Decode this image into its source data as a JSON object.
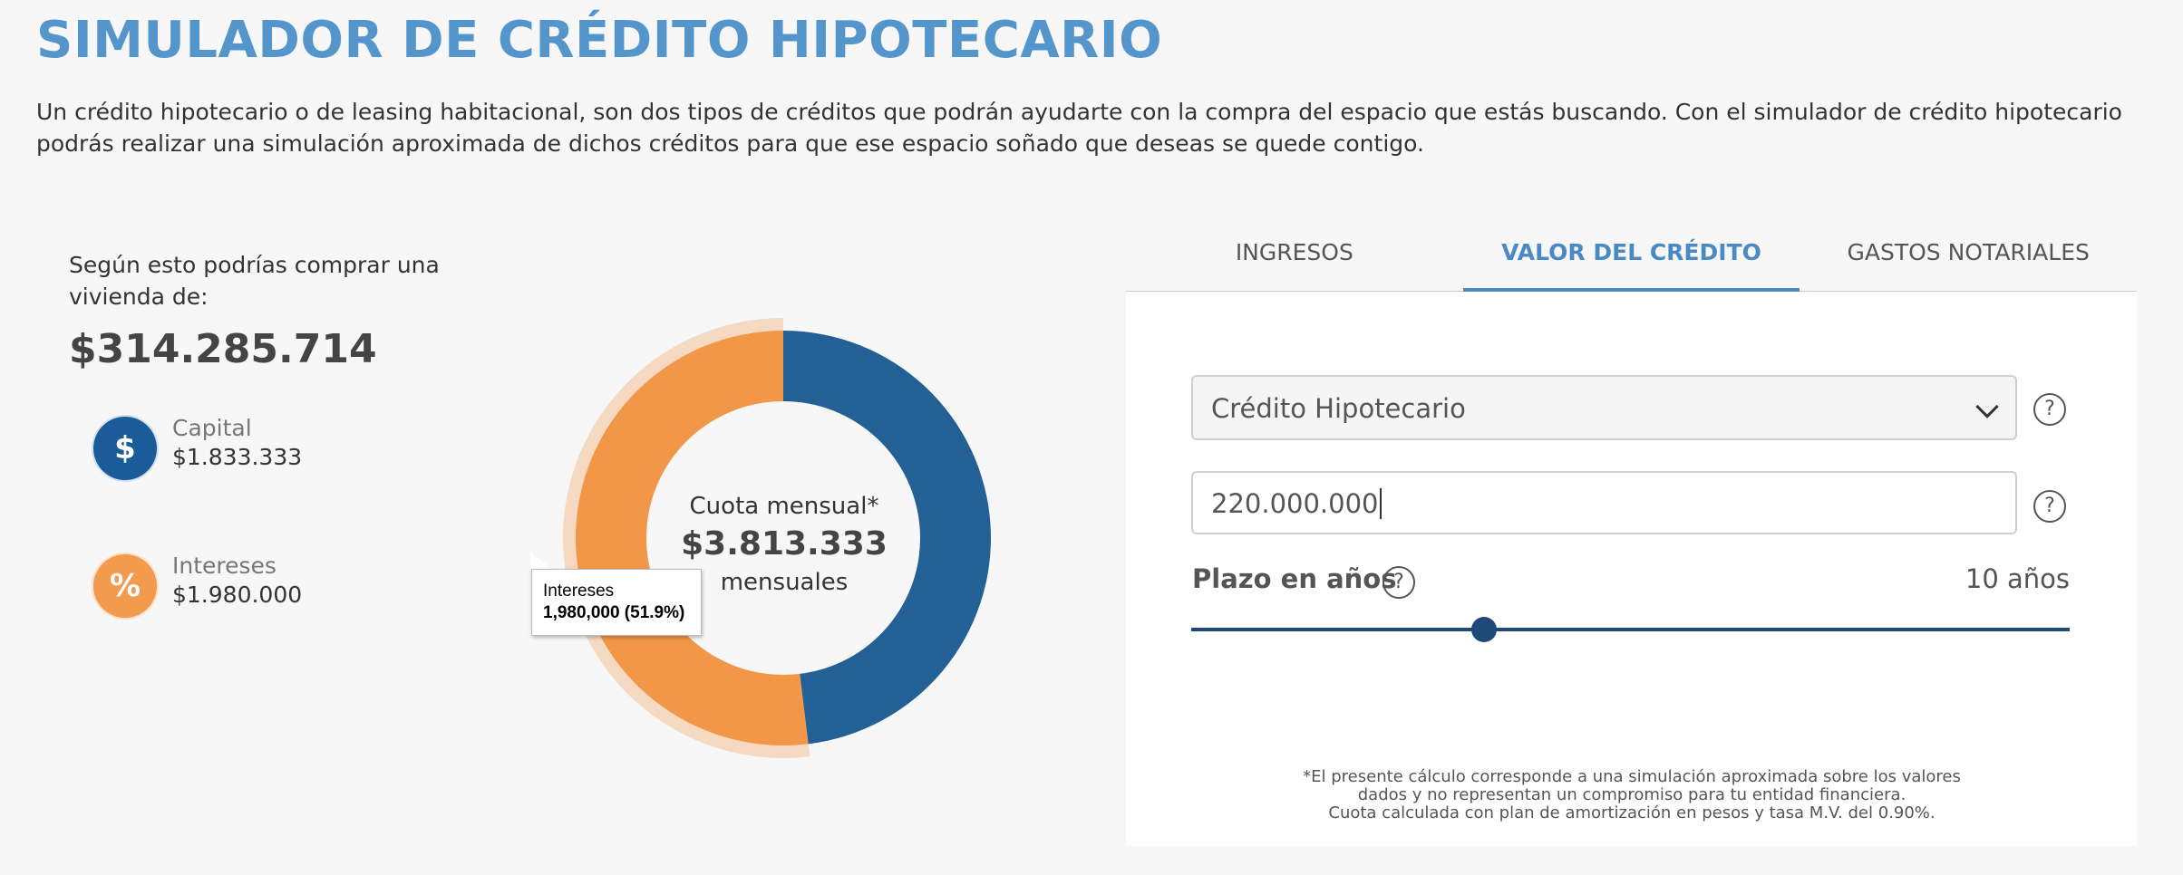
{
  "header": {
    "title": "SIMULADOR DE CRÉDITO HIPOTECARIO",
    "intro": "Un crédito hipotecario o de leasing habitacional, son dos tipos de créditos que podrán ayudarte con la compra del espacio que estás buscando. Con el simulador de crédito hipotecario podrás realizar una simulación aproximada de dichos créditos para que ese espacio soñado que deseas se quede contigo."
  },
  "summary": {
    "buy_label": "Según esto podrías comprar una vivienda de:",
    "buy_value": "$314.285.714",
    "legend": [
      {
        "icon": "dollar-icon",
        "glyph": "$",
        "name": "Capital",
        "value": "$1.833.333",
        "color": "#1a5b99"
      },
      {
        "icon": "percent-icon",
        "glyph": "%",
        "name": "Intereses",
        "value": "$1.980.000",
        "color": "#f29a4d"
      }
    ]
  },
  "chart_data": {
    "type": "pie",
    "variant": "donut",
    "slices": [
      {
        "label": "Capital",
        "value": 1833333,
        "color": "#236096"
      },
      {
        "label": "Intereses",
        "value": 1980000,
        "color": "#f29647",
        "highlighted": true
      }
    ],
    "center": {
      "label": "Cuota mensual*",
      "value": "$3.813.333",
      "unit": "mensuales"
    },
    "tooltip": {
      "label": "Intereses",
      "value": "1,980,000 (51.9%)"
    }
  },
  "tabs": [
    {
      "label": "INGRESOS",
      "active": false
    },
    {
      "label": "VALOR DEL CRÉDITO",
      "active": true
    },
    {
      "label": "GASTOS NOTARIALES",
      "active": false
    }
  ],
  "form": {
    "credit_type": "Crédito Hipotecario",
    "amount": "220.000.000",
    "plazo_label": "Plazo en años",
    "plazo_value": "10 años",
    "help_glyph": "?",
    "slider_fraction": 0.333
  },
  "footnote": {
    "line1": "*El presente cálculo corresponde a una simulación aproximada sobre los valores",
    "line2": "dados y no representan un compromiso para tu entidad financiera.",
    "line3": "Cuota calculada con plan de amortización en pesos y tasa M.V. del 0.90%."
  },
  "colors": {
    "accent": "#4a8ac4",
    "capital": "#236096",
    "interest": "#f29647",
    "slider": "#1e4a7a"
  }
}
